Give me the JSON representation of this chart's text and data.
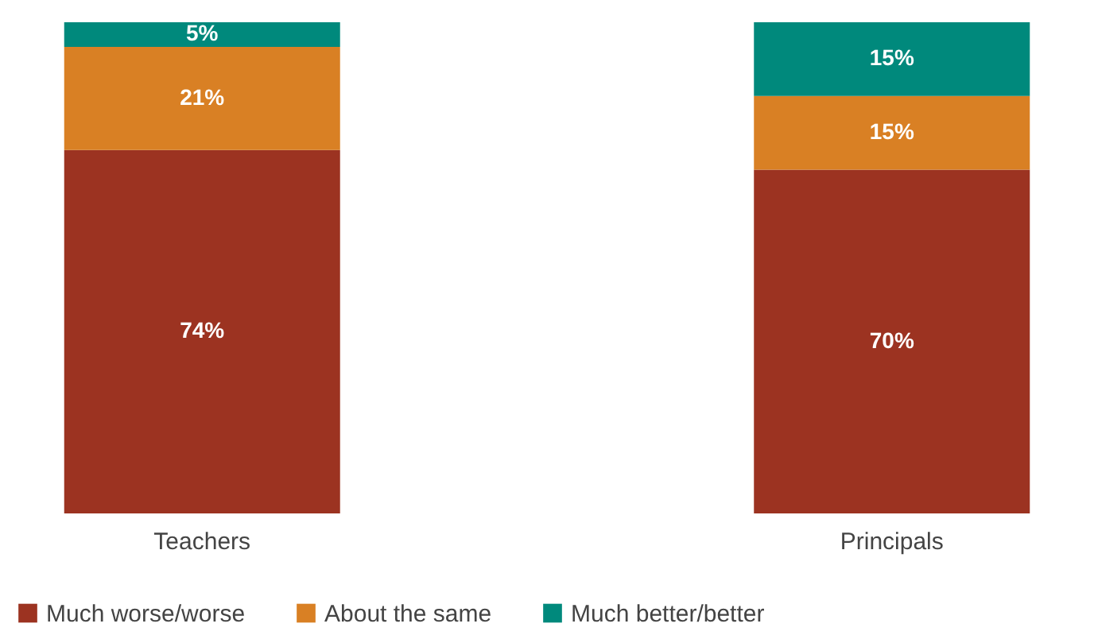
{
  "chart_data": {
    "type": "bar",
    "stacked": true,
    "categories": [
      "Teachers",
      "Principals"
    ],
    "ylim": [
      0,
      100
    ],
    "tick_labels": "x",
    "legend": "bottom",
    "series": [
      {
        "name": "Much worse/worse",
        "color": "#9c3321",
        "values": [
          74,
          70
        ],
        "value_labels": [
          "74%",
          "70%"
        ]
      },
      {
        "name": "About the same",
        "color": "#d98024",
        "values": [
          21,
          15
        ],
        "value_labels": [
          "21%",
          "15%"
        ]
      },
      {
        "name": "Much better/better",
        "color": "#00897c",
        "values": [
          5,
          15
        ],
        "value_labels": [
          "5%",
          "15%"
        ]
      }
    ]
  }
}
